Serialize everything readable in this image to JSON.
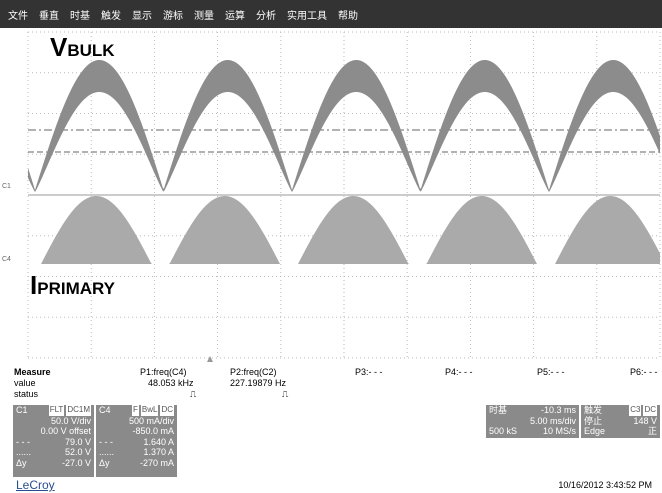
{
  "menu": [
    "文件",
    "垂直",
    "时基",
    "触发",
    "显示",
    "游标",
    "测量",
    "运算",
    "分析",
    "实用工具",
    "帮助"
  ],
  "labels": {
    "vbulk": {
      "main": "V",
      "sub": "BULK"
    },
    "iprimary": {
      "main": "I",
      "sub": "PRIMARY"
    }
  },
  "markers": [
    "C1",
    "C4"
  ],
  "measure": {
    "headers": [
      "Measure",
      "P1:freq(C4)",
      "P2:freq(C2)",
      "P3:- - -",
      "P4:- - -",
      "P5:- - -",
      "P6:- - -"
    ],
    "value": [
      "value",
      "48.053 kHz",
      "227.19879 Hz"
    ],
    "status": [
      "status",
      "⎍",
      "⎍"
    ]
  },
  "channels": [
    {
      "name": "C1",
      "badges": [
        "FLT",
        "DC1M"
      ],
      "rows": [
        [
          "",
          "50.0 V/div"
        ],
        [
          "",
          "0.00 V offset"
        ],
        [
          "- - -",
          "79.0 V"
        ],
        [
          "......",
          "52.0 V"
        ],
        [
          "Δy",
          "-27.0 V"
        ]
      ]
    },
    {
      "name": "C4",
      "badges": [
        "F",
        "BwL",
        "DC"
      ],
      "rows": [
        [
          "",
          "500 mA/div"
        ],
        [
          "",
          "-850.0 mA"
        ],
        [
          "- - -",
          "1.640 A"
        ],
        [
          "......",
          "1.370 A"
        ],
        [
          "Δy",
          "-270 mA"
        ]
      ]
    }
  ],
  "timebase": {
    "title": "时基",
    "offset": "-10.3 ms",
    "div": "5.00 ms/div",
    "samples": "500 kS",
    "rate": "10 MS/s"
  },
  "trigger": {
    "title": "触发",
    "badges": [
      "C3",
      "DC"
    ],
    "state": "停止",
    "level": "148 V",
    "type": "Edge",
    "slope": "正"
  },
  "footer": {
    "brand": "LeCroy",
    "date": "10/16/2012 3:43:52 PM"
  }
}
